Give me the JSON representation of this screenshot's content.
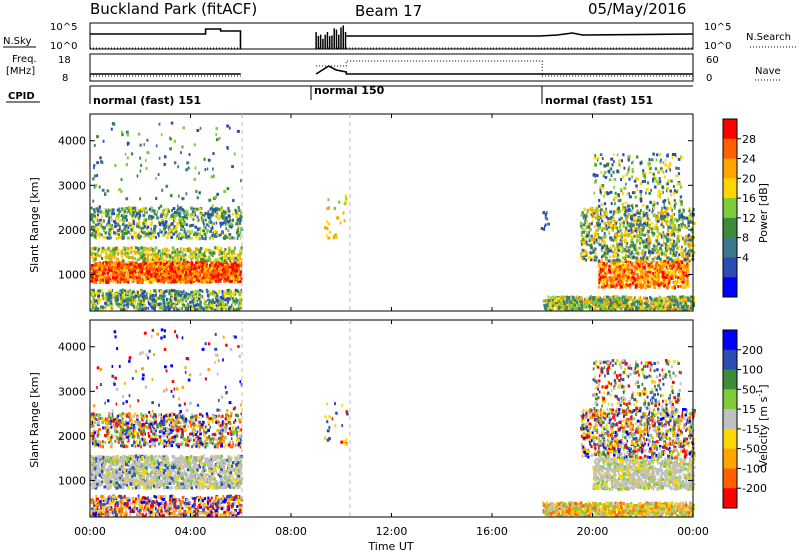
{
  "header": {
    "title_left": "Buckland Park (fitACF)",
    "title_center": "Beam 17",
    "title_right": "05/May/2016"
  },
  "panels": {
    "nsky_label": "N.Sky",
    "nsearch_label": "N.Search",
    "freq_label_1": "Freq.",
    "freq_label_2": "[MHz]",
    "nave_label": "Nave",
    "cpid_label": "CPID",
    "nsky_ticks": [
      "10^5",
      "10^0"
    ],
    "nsearch_ticks": [
      "10^5",
      "10^0"
    ],
    "freq_ticks": [
      "18",
      "8"
    ],
    "nave_ticks": [
      "60",
      "0"
    ],
    "cpid_segments": [
      {
        "label": "normal (fast) 151",
        "start": 0,
        "end": 6
      },
      {
        "label": "normal 150",
        "start": 9,
        "end": 18
      },
      {
        "label": "normal (fast) 151",
        "start": 18,
        "end": 24
      }
    ]
  },
  "colors": {
    "power": [
      "#0000ff",
      "#2b4cb0",
      "#3a7a8c",
      "#3c8c3c",
      "#7fcc3a",
      "#ffd700",
      "#ffa500",
      "#ff6000",
      "#ff0000"
    ],
    "velocity": [
      "#0000ff",
      "#2b4cb0",
      "#3c8c3c",
      "#7fcc3a",
      "#c0c0c0",
      "#ffd700",
      "#ffa500",
      "#ff6000",
      "#ff0000"
    ],
    "ground": "#c0c0c0"
  },
  "chart_data": [
    {
      "type": "heatmap",
      "name": "Power",
      "ylabel": "Slant Range [km]",
      "colorbar_label": "Power [dB]",
      "colorbar_ticks": [
        "28",
        "24",
        "20",
        "16",
        "12",
        "8",
        "4"
      ],
      "y_ticks": [
        "4000",
        "3000",
        "2000",
        "1000"
      ],
      "ylim": [
        180,
        4600
      ],
      "xlim": [
        0,
        24
      ],
      "regions": [
        {
          "t": [
            0,
            6
          ],
          "r": [
            800,
            1300
          ],
          "level": "high"
        },
        {
          "t": [
            0,
            6
          ],
          "r": [
            1800,
            2500
          ],
          "level": "mid"
        },
        {
          "t": [
            0,
            6
          ],
          "r": [
            200,
            600
          ],
          "level": "mid"
        },
        {
          "t": [
            18,
            24
          ],
          "r": [
            700,
            3500
          ],
          "level": "mid"
        },
        {
          "t": [
            18,
            24
          ],
          "r": [
            200,
            500
          ],
          "level": "mid"
        }
      ]
    },
    {
      "type": "heatmap",
      "name": "Velocity",
      "ylabel": "Slant Range [km]",
      "colorbar_label": "Velocity [m s^-1]",
      "colorbar_ticks": [
        "200",
        "100",
        "50",
        "15",
        "-15",
        "-50",
        "-100",
        "-200"
      ],
      "y_ticks": [
        "4000",
        "3000",
        "2000",
        "1000"
      ],
      "ylim": [
        180,
        4600
      ],
      "xlim": [
        0,
        24
      ]
    }
  ],
  "axes": {
    "x_ticks": [
      "00:00",
      "04:00",
      "08:00",
      "12:00",
      "16:00",
      "20:00",
      "00:00"
    ],
    "xlabel": "Time UT"
  }
}
